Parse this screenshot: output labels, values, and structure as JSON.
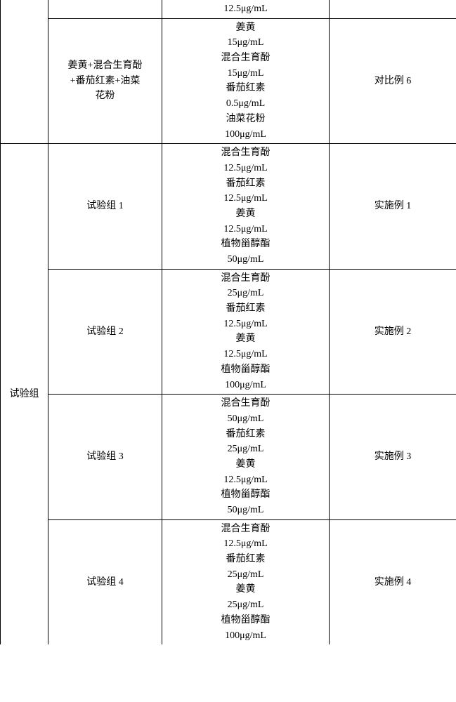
{
  "table": {
    "row0": {
      "col3": "12.5μg/mL"
    },
    "row1": {
      "col2": "姜黄+混合生育酚\n+番茄红素+油菜\n花粉",
      "col3": "姜黄\n15μg/mL\n混合生育酚\n15μg/mL\n番茄红素\n0.5μg/mL\n油菜花粉\n100μg/mL",
      "col4": "对比例 6"
    },
    "group_label": "试验组",
    "rows": [
      {
        "col2": "试验组 1",
        "col3": "混合生育酚\n12.5μg/mL\n番茄红素\n12.5μg/mL\n姜黄\n12.5μg/mL\n植物甾醇酯\n50μg/mL",
        "col4": "实施例 1"
      },
      {
        "col2": "试验组 2",
        "col3": "混合生育酚\n25μg/mL\n番茄红素\n12.5μg/mL\n姜黄\n12.5μg/mL\n植物甾醇酯\n100μg/mL",
        "col4": "实施例 2"
      },
      {
        "col2": "试验组 3",
        "col3": "混合生育酚\n50μg/mL\n番茄红素\n25μg/mL\n姜黄\n12.5μg/mL\n植物甾醇酯\n50μg/mL",
        "col4": "实施例 3"
      },
      {
        "col2": "试验组 4",
        "col3": "混合生育酚\n12.5μg/mL\n番茄红素\n25μg/mL\n姜黄\n25μg/mL\n植物甾醇酯\n100μg/mL",
        "col4": "实施例 4"
      }
    ]
  }
}
